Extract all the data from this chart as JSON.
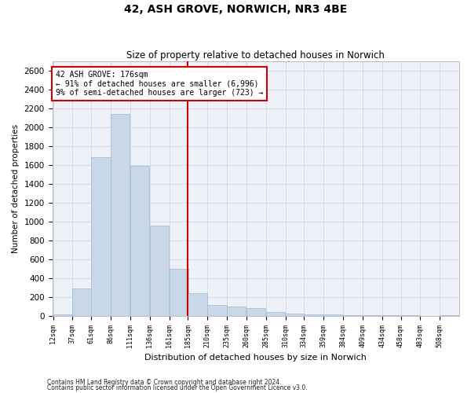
{
  "title": "42, ASH GROVE, NORWICH, NR3 4BE",
  "subtitle": "Size of property relative to detached houses in Norwich",
  "xlabel": "Distribution of detached houses by size in Norwich",
  "ylabel": "Number of detached properties",
  "bar_color": "#c8d8e8",
  "bar_edgecolor": "#a0b8d0",
  "grid_color": "#d0d8e8",
  "background_color": "#eef2f8",
  "vline_color": "#cc0000",
  "annotation_line1": "42 ASH GROVE: 176sqm",
  "annotation_line2": "← 91% of detached houses are smaller (6,996)",
  "annotation_line3": "9% of semi-detached houses are larger (723) →",
  "annotation_box_color": "#cc0000",
  "bins": [
    12,
    37,
    61,
    86,
    111,
    136,
    161,
    185,
    210,
    235,
    260,
    285,
    310,
    334,
    359,
    384,
    409,
    434,
    458,
    483,
    508
  ],
  "values": [
    20,
    290,
    1680,
    2140,
    1590,
    960,
    500,
    240,
    120,
    100,
    80,
    40,
    25,
    15,
    20,
    10,
    5,
    10,
    5,
    0,
    10
  ],
  "tick_labels": [
    "12sqm",
    "37sqm",
    "61sqm",
    "86sqm",
    "111sqm",
    "136sqm",
    "161sqm",
    "185sqm",
    "210sqm",
    "235sqm",
    "260sqm",
    "285sqm",
    "310sqm",
    "334sqm",
    "359sqm",
    "384sqm",
    "409sqm",
    "434sqm",
    "458sqm",
    "483sqm",
    "508sqm"
  ],
  "ylim": [
    0,
    2700
  ],
  "yticks": [
    0,
    200,
    400,
    600,
    800,
    1000,
    1200,
    1400,
    1600,
    1800,
    2000,
    2200,
    2400,
    2600
  ],
  "footer1": "Contains HM Land Registry data © Crown copyright and database right 2024.",
  "footer2": "Contains public sector information licensed under the Open Government Licence v3.0."
}
